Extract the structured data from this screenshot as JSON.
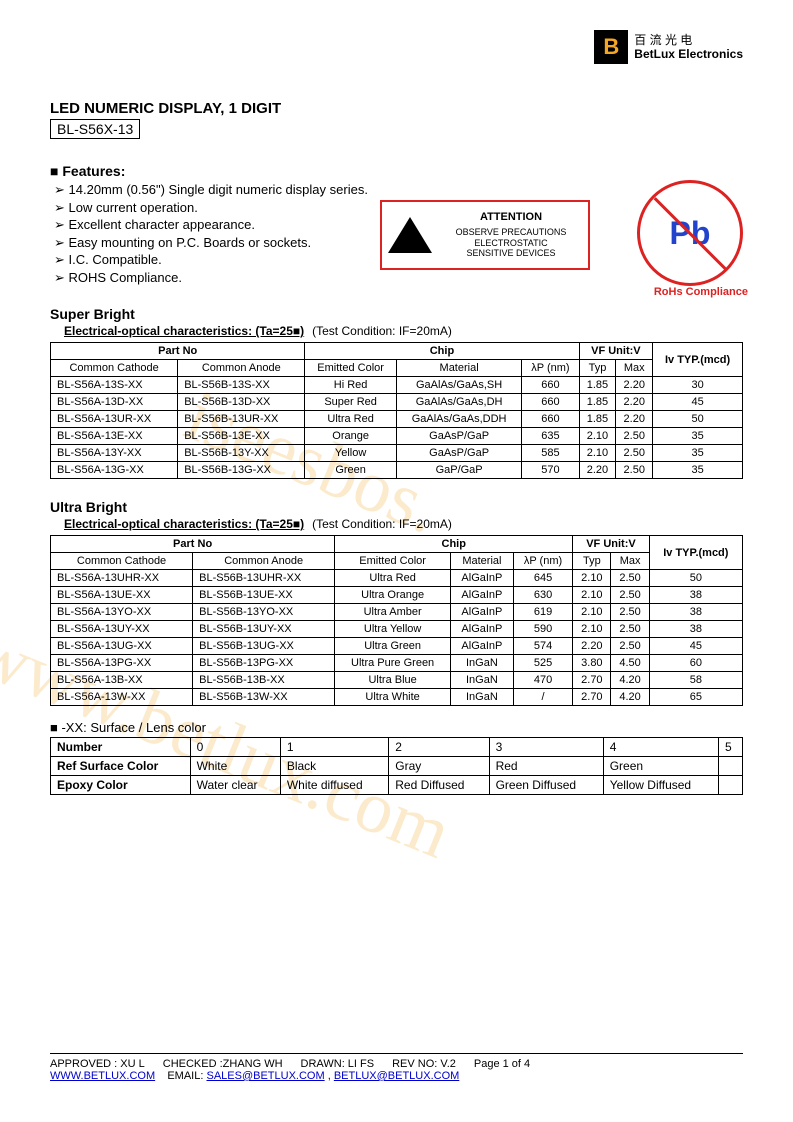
{
  "logo": {
    "b": "B",
    "cn": "百 流 光 电",
    "en": "BetLux Electronics"
  },
  "title": "LED NUMERIC DISPLAY, 1 DIGIT",
  "model": "BL-S56X-13",
  "features_label": "Features:",
  "features": [
    "14.20mm (0.56\") Single digit numeric display series.",
    "Low current operation.",
    "Excellent character appearance.",
    "Easy mounting on P.C. Boards or sockets.",
    "I.C. Compatible.",
    "ROHS Compliance."
  ],
  "esd": {
    "attention": "ATTENTION",
    "line1": "OBSERVE PRECAUTIONS",
    "line2": "ELECTROSTATIC",
    "line3": "SENSITIVE DEVICES"
  },
  "pb": {
    "symbol": "Pb",
    "label": "RoHs Compliance"
  },
  "section1": {
    "heading": "Super Bright",
    "sub": "Electrical-optical characteristics: (Ta=25■)",
    "cond": "(Test Condition: IF=20mA)",
    "hdr": {
      "partno": "Part No",
      "chip": "Chip",
      "vf": "VF Unit:V",
      "iv": "Iv TYP.(mcd)",
      "cc": "Common Cathode",
      "ca": "Common Anode",
      "ec": "Emitted Color",
      "mat": "Material",
      "lp": "λP (nm)",
      "typ": "Typ",
      "max": "Max"
    },
    "rows": [
      {
        "cc": "BL-S56A-13S-XX",
        "ca": "BL-S56B-13S-XX",
        "ec": "Hi Red",
        "mat": "GaAlAs/GaAs,SH",
        "lp": "660",
        "typ": "1.85",
        "max": "2.20",
        "iv": "30"
      },
      {
        "cc": "BL-S56A-13D-XX",
        "ca": "BL-S56B-13D-XX",
        "ec": "Super Red",
        "mat": "GaAlAs/GaAs,DH",
        "lp": "660",
        "typ": "1.85",
        "max": "2.20",
        "iv": "45"
      },
      {
        "cc": "BL-S56A-13UR-XX",
        "ca": "BL-S56B-13UR-XX",
        "ec": "Ultra Red",
        "mat": "GaAlAs/GaAs,DDH",
        "lp": "660",
        "typ": "1.85",
        "max": "2.20",
        "iv": "50"
      },
      {
        "cc": "BL-S56A-13E-XX",
        "ca": "BL-S56B-13E-XX",
        "ec": "Orange",
        "mat": "GaAsP/GaP",
        "lp": "635",
        "typ": "2.10",
        "max": "2.50",
        "iv": "35"
      },
      {
        "cc": "BL-S56A-13Y-XX",
        "ca": "BL-S56B-13Y-XX",
        "ec": "Yellow",
        "mat": "GaAsP/GaP",
        "lp": "585",
        "typ": "2.10",
        "max": "2.50",
        "iv": "35"
      },
      {
        "cc": "BL-S56A-13G-XX",
        "ca": "BL-S56B-13G-XX",
        "ec": "Green",
        "mat": "GaP/GaP",
        "lp": "570",
        "typ": "2.20",
        "max": "2.50",
        "iv": "35"
      }
    ]
  },
  "section2": {
    "heading": "Ultra Bright",
    "sub": "Electrical-optical characteristics: (Ta=25■)",
    "cond": "(Test Condition: IF=20mA)",
    "hdr": {
      "partno": "Part No",
      "chip": "Chip",
      "vf": "VF Unit:V",
      "iv": "Iv TYP.(mcd)",
      "cc": "Common Cathode",
      "ca": "Common Anode",
      "ec": "Emitted Color",
      "mat": "Material",
      "lp": "λP (nm)",
      "typ": "Typ",
      "max": "Max"
    },
    "rows": [
      {
        "cc": "BL-S56A-13UHR-XX",
        "ca": "BL-S56B-13UHR-XX",
        "ec": "Ultra Red",
        "mat": "AlGaInP",
        "lp": "645",
        "typ": "2.10",
        "max": "2.50",
        "iv": "50"
      },
      {
        "cc": "BL-S56A-13UE-XX",
        "ca": "BL-S56B-13UE-XX",
        "ec": "Ultra Orange",
        "mat": "AlGaInP",
        "lp": "630",
        "typ": "2.10",
        "max": "2.50",
        "iv": "38"
      },
      {
        "cc": "BL-S56A-13YO-XX",
        "ca": "BL-S56B-13YO-XX",
        "ec": "Ultra Amber",
        "mat": "AlGaInP",
        "lp": "619",
        "typ": "2.10",
        "max": "2.50",
        "iv": "38"
      },
      {
        "cc": "BL-S56A-13UY-XX",
        "ca": "BL-S56B-13UY-XX",
        "ec": "Ultra Yellow",
        "mat": "AlGaInP",
        "lp": "590",
        "typ": "2.10",
        "max": "2.50",
        "iv": "38"
      },
      {
        "cc": "BL-S56A-13UG-XX",
        "ca": "BL-S56B-13UG-XX",
        "ec": "Ultra Green",
        "mat": "AlGaInP",
        "lp": "574",
        "typ": "2.20",
        "max": "2.50",
        "iv": "45"
      },
      {
        "cc": "BL-S56A-13PG-XX",
        "ca": "BL-S56B-13PG-XX",
        "ec": "Ultra Pure Green",
        "mat": "InGaN",
        "lp": "525",
        "typ": "3.80",
        "max": "4.50",
        "iv": "60"
      },
      {
        "cc": "BL-S56A-13B-XX",
        "ca": "BL-S56B-13B-XX",
        "ec": "Ultra Blue",
        "mat": "InGaN",
        "lp": "470",
        "typ": "2.70",
        "max": "4.20",
        "iv": "58"
      },
      {
        "cc": "BL-S56A-13W-XX",
        "ca": "BL-S56B-13W-XX",
        "ec": "Ultra White",
        "mat": "InGaN",
        "lp": "/",
        "typ": "2.70",
        "max": "4.20",
        "iv": "65"
      }
    ]
  },
  "lens": {
    "heading": "-XX: Surface / Lens color",
    "rows": [
      {
        "h": "Number",
        "c": [
          "0",
          "1",
          "2",
          "3",
          "4",
          "5"
        ]
      },
      {
        "h": "Ref Surface Color",
        "c": [
          "White",
          "Black",
          "Gray",
          "Red",
          "Green",
          ""
        ]
      },
      {
        "h": "Epoxy Color",
        "c": [
          "Water clear",
          "White diffused",
          "Red Diffused",
          "Green Diffused",
          "Yellow Diffused",
          ""
        ]
      }
    ]
  },
  "footer": {
    "approved": "APPROVED : XU L",
    "checked": "CHECKED :ZHANG WH",
    "drawn": "DRAWN: LI FS",
    "rev": "REV NO: V.2",
    "page": "Page 1 of 4",
    "url": "WWW.BETLUX.COM",
    "email_label": "EMAIL:",
    "email1": "SALES@BETLUX.COM",
    "comma": ",",
    "email2": "BETLUX@BETLUX.COM"
  },
  "watermark": "www.betlux.com"
}
